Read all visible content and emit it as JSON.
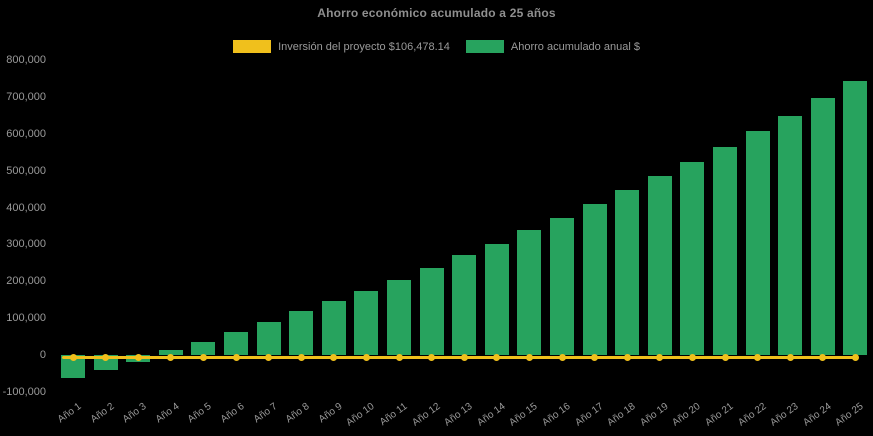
{
  "title": "Ahorro económico acumulado a 25 años",
  "legend": {
    "investment_label": "Inversión del proyecto $106,478.14",
    "savings_label": "Ahorro acumulado anual $"
  },
  "colors": {
    "background": "#000000",
    "bar_green": "#27a35e",
    "line_yellow": "#f0c01c",
    "axis_text": "#9a9a9a",
    "title_text": "#8f8f8f"
  },
  "chart_data": {
    "type": "bar",
    "title": "Ahorro económico acumulado a 25 años",
    "categories": [
      "Año 1",
      "Año 2",
      "Año 3",
      "Año 4",
      "Año 5",
      "Año 6",
      "Año 7",
      "Año 8",
      "Año 9",
      "Año 10",
      "Año 11",
      "Año 12",
      "Año 13",
      "Año 14",
      "Año 15",
      "Año 16",
      "Año 17",
      "Año 18",
      "Año 19",
      "Año 20",
      "Año 21",
      "Año 22",
      "Año 23",
      "Año 24",
      "Año 25"
    ],
    "series": [
      {
        "name": "Ahorro acumulado anual $",
        "type": "bar",
        "color": "#27a35e",
        "values": [
          -62000,
          -39000,
          -17000,
          15000,
          37000,
          64000,
          91000,
          120000,
          148000,
          175000,
          204000,
          238000,
          272000,
          302000,
          341000,
          374000,
          410000,
          448000,
          486000,
          525000,
          565000,
          609000,
          650000,
          698000,
          745000
        ]
      },
      {
        "name": "Inversión del proyecto $106,478.14",
        "type": "line",
        "color": "#f0c01c",
        "marker": "circle",
        "plotted_constant_value": 0,
        "label_amount": "$106,478.14"
      }
    ],
    "xlabel": "",
    "ylabel": "",
    "ylim": [
      -100000,
      800000
    ],
    "y_ticks": [
      800000,
      700000,
      600000,
      500000,
      400000,
      300000,
      200000,
      100000,
      0,
      -100000
    ],
    "grid": false,
    "background": "black",
    "legend_position": "top"
  }
}
